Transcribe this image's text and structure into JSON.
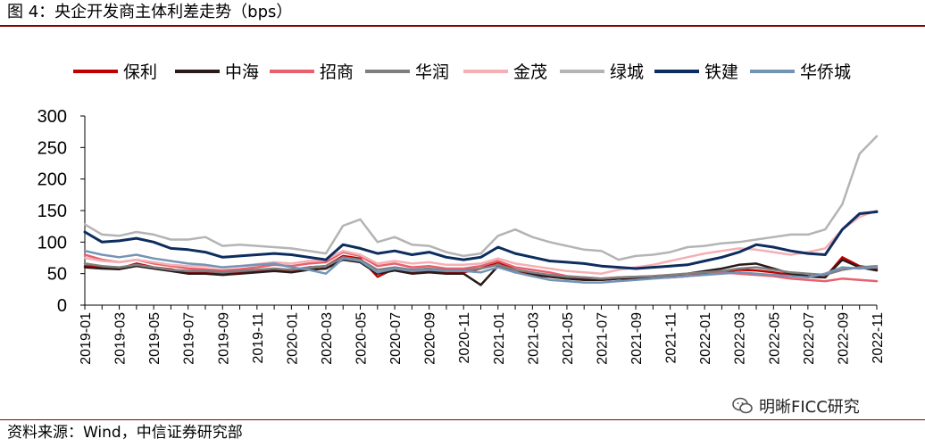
{
  "header": {
    "title": "图 4：央企开发商主体利差走势（bps）"
  },
  "footer": {
    "source": "资料来源：Wind，中信证券研究部",
    "watermark": "明晰FICC研究"
  },
  "chart_data": {
    "type": "line",
    "title": "",
    "xlabel": "",
    "ylabel": "",
    "ylim": [
      0,
      300
    ],
    "yticks": [
      0,
      50,
      100,
      150,
      200,
      250,
      300
    ],
    "grid": false,
    "legend_position": "top",
    "categories": [
      "2019-01",
      "2019-02",
      "2019-03",
      "2019-04",
      "2019-05",
      "2019-06",
      "2019-07",
      "2019-08",
      "2019-09",
      "2019-10",
      "2019-11",
      "2019-12",
      "2020-01",
      "2020-02",
      "2020-03",
      "2020-04",
      "2020-05",
      "2020-06",
      "2020-07",
      "2020-08",
      "2020-09",
      "2020-10",
      "2020-11",
      "2020-12",
      "2021-01",
      "2021-02",
      "2021-03",
      "2021-04",
      "2021-05",
      "2021-06",
      "2021-07",
      "2021-08",
      "2021-09",
      "2021-10",
      "2021-11",
      "2021-12",
      "2022-01",
      "2022-02",
      "2022-03",
      "2022-04",
      "2022-05",
      "2022-06",
      "2022-07",
      "2022-08",
      "2022-09",
      "2022-10",
      "2022-11"
    ],
    "series": [
      {
        "name": "保利",
        "color": "#c00000",
        "width": 2.5,
        "values": [
          62,
          60,
          58,
          66,
          60,
          57,
          52,
          52,
          50,
          52,
          54,
          57,
          55,
          60,
          62,
          78,
          74,
          45,
          58,
          52,
          55,
          52,
          52,
          58,
          68,
          56,
          50,
          46,
          42,
          42,
          40,
          42,
          42,
          43,
          44,
          46,
          50,
          52,
          56,
          55,
          52,
          48,
          45,
          44,
          76,
          62,
          58
        ]
      },
      {
        "name": "中海",
        "color": "#2a1a1a",
        "width": 2.5,
        "values": [
          60,
          58,
          57,
          62,
          58,
          54,
          50,
          50,
          48,
          50,
          52,
          54,
          52,
          56,
          58,
          72,
          68,
          50,
          55,
          50,
          52,
          50,
          50,
          32,
          62,
          52,
          48,
          45,
          42,
          40,
          40,
          42,
          42,
          44,
          46,
          50,
          54,
          58,
          64,
          66,
          58,
          50,
          46,
          44,
          72,
          60,
          55
        ]
      },
      {
        "name": "招商",
        "color": "#e8606e",
        "width": 2.5,
        "values": [
          80,
          72,
          68,
          72,
          66,
          62,
          58,
          57,
          55,
          57,
          60,
          64,
          62,
          66,
          68,
          84,
          78,
          62,
          66,
          60,
          62,
          58,
          58,
          62,
          70,
          60,
          56,
          52,
          46,
          44,
          42,
          44,
          45,
          46,
          48,
          50,
          52,
          52,
          50,
          48,
          46,
          42,
          40,
          38,
          42,
          40,
          38
        ]
      },
      {
        "name": "华润",
        "color": "#7f7f7f",
        "width": 2.5,
        "values": [
          66,
          62,
          60,
          64,
          60,
          56,
          54,
          54,
          52,
          54,
          56,
          58,
          56,
          60,
          62,
          76,
          72,
          56,
          60,
          56,
          58,
          55,
          55,
          58,
          64,
          56,
          52,
          48,
          45,
          44,
          42,
          44,
          45,
          46,
          48,
          50,
          52,
          54,
          58,
          60,
          56,
          52,
          50,
          48,
          56,
          60,
          62
        ]
      },
      {
        "name": "金茂",
        "color": "#f4b0b4",
        "width": 2.5,
        "values": [
          75,
          70,
          68,
          72,
          68,
          64,
          62,
          62,
          60,
          62,
          65,
          68,
          66,
          70,
          72,
          86,
          80,
          66,
          70,
          66,
          68,
          64,
          64,
          66,
          74,
          66,
          62,
          58,
          54,
          52,
          50,
          56,
          60,
          64,
          70,
          76,
          82,
          86,
          90,
          88,
          84,
          80,
          84,
          90,
          120,
          140,
          150
        ]
      },
      {
        "name": "绿城",
        "color": "#b4b4b4",
        "width": 2.5,
        "values": [
          128,
          112,
          110,
          116,
          112,
          104,
          104,
          108,
          94,
          96,
          94,
          92,
          90,
          86,
          82,
          126,
          136,
          100,
          108,
          96,
          94,
          84,
          78,
          82,
          110,
          120,
          108,
          100,
          94,
          88,
          86,
          72,
          78,
          80,
          84,
          92,
          94,
          98,
          100,
          104,
          108,
          112,
          112,
          120,
          160,
          240,
          268
        ]
      },
      {
        "name": "铁建",
        "color": "#0d2d5e",
        "width": 3,
        "values": [
          116,
          100,
          102,
          106,
          100,
          90,
          88,
          84,
          76,
          78,
          80,
          82,
          80,
          76,
          72,
          96,
          90,
          82,
          86,
          80,
          84,
          76,
          72,
          76,
          92,
          82,
          76,
          70,
          68,
          66,
          62,
          60,
          58,
          60,
          62,
          64,
          70,
          76,
          84,
          96,
          92,
          86,
          82,
          80,
          120,
          145,
          148
        ]
      },
      {
        "name": "华侨城",
        "color": "#7494b6",
        "width": 2.5,
        "values": [
          86,
          80,
          76,
          80,
          74,
          70,
          66,
          64,
          60,
          62,
          64,
          66,
          60,
          56,
          50,
          74,
          70,
          52,
          58,
          54,
          56,
          54,
          54,
          52,
          60,
          52,
          46,
          40,
          38,
          36,
          36,
          38,
          40,
          42,
          44,
          46,
          48,
          50,
          52,
          50,
          48,
          46,
          44,
          50,
          60,
          58,
          60
        ]
      }
    ]
  }
}
